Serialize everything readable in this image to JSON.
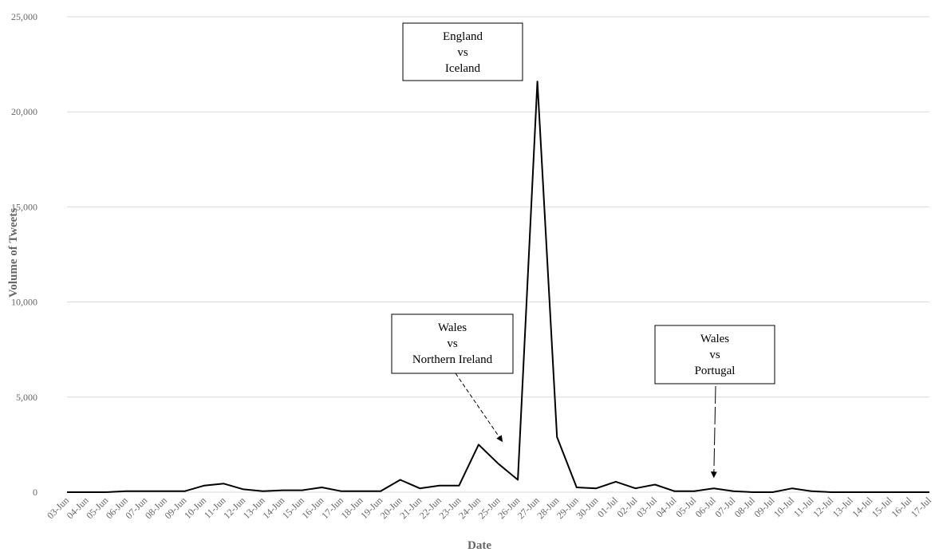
{
  "chart_data": {
    "type": "line",
    "xlabel": "Date",
    "ylabel": "Volume of Tweets",
    "ylim": [
      0,
      25000
    ],
    "yticks": [
      0,
      5000,
      10000,
      15000,
      20000,
      25000
    ],
    "ytick_labels": [
      "0",
      "5,000",
      "10,000",
      "15,000",
      "20,000",
      "25,000"
    ],
    "grid": "horizontal",
    "categories": [
      "03-Jun",
      "04-Jun",
      "05-Jun",
      "06-Jun",
      "07-Jun",
      "08-Jun",
      "09-Jun",
      "10-Jun",
      "11-Jun",
      "12-Jun",
      "13-Jun",
      "14-Jun",
      "15-Jun",
      "16-Jun",
      "17-Jun",
      "18-Jun",
      "19-Jun",
      "20-Jun",
      "21-Jun",
      "22-Jun",
      "23-Jun",
      "24-Jun",
      "25-Jun",
      "26-Jun",
      "27-Jun",
      "28-Jun",
      "29-Jun",
      "30-Jun",
      "01-Jul",
      "02-Jul",
      "03-Jul",
      "04-Jul",
      "05-Jul",
      "06-Jul",
      "07-Jul",
      "08-Jul",
      "09-Jul",
      "10-Jul",
      "11-Jul",
      "12-Jul",
      "13-Jul",
      "14-Jul",
      "15-Jul",
      "16-Jul",
      "17-Jul"
    ],
    "values": [
      0,
      0,
      0,
      50,
      50,
      50,
      50,
      350,
      450,
      150,
      50,
      100,
      100,
      250,
      50,
      50,
      50,
      650,
      200,
      350,
      350,
      2500,
      1500,
      650,
      21600,
      2900,
      250,
      200,
      550,
      200,
      400,
      50,
      50,
      200,
      50,
      0,
      0,
      200,
      50,
      0,
      0,
      0,
      0,
      0,
      0
    ],
    "annotations": [
      {
        "lines": [
          "England",
          "vs",
          "Iceland"
        ],
        "target": "27-Jun",
        "arrow": false
      },
      {
        "lines": [
          "Wales",
          "vs",
          "Northern Ireland"
        ],
        "target": "25-Jun",
        "arrow": true
      },
      {
        "lines": [
          "Wales",
          "vs",
          "Portugal"
        ],
        "target": "06-Jul",
        "arrow": true
      }
    ]
  }
}
